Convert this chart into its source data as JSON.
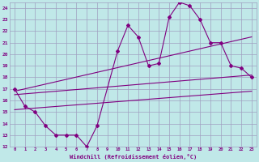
{
  "xlabel": "Windchill (Refroidissement éolien,°C)",
  "bg_color": "#c0e8e8",
  "line_color": "#800080",
  "grid_color": "#a0a0c0",
  "xlim": [
    -0.5,
    23.5
  ],
  "ylim": [
    12,
    24.5
  ],
  "xticks": [
    0,
    1,
    2,
    3,
    4,
    5,
    6,
    7,
    8,
    9,
    10,
    11,
    12,
    13,
    14,
    15,
    16,
    17,
    18,
    19,
    20,
    21,
    22,
    23
  ],
  "yticks": [
    12,
    13,
    14,
    15,
    16,
    17,
    18,
    19,
    20,
    21,
    22,
    23,
    24
  ],
  "line1_x": [
    0,
    1,
    2,
    3,
    4,
    5,
    6,
    7,
    8,
    10,
    11,
    12,
    13,
    14,
    15,
    16,
    17,
    18,
    19,
    20,
    21,
    22,
    23
  ],
  "line1_y": [
    17,
    15.5,
    15,
    13.8,
    13,
    13,
    13,
    12,
    13.8,
    20.3,
    22.5,
    21.5,
    19,
    19.2,
    23.2,
    24.5,
    24.2,
    23,
    21,
    21,
    19,
    18.8,
    18
  ],
  "line2_x": [
    0,
    23
  ],
  "line2_y": [
    16.5,
    18.2
  ],
  "line3_x": [
    0,
    23
  ],
  "line3_y": [
    15.2,
    16.8
  ],
  "line4_x": [
    0,
    23
  ],
  "line4_y": [
    16.8,
    21.5
  ]
}
